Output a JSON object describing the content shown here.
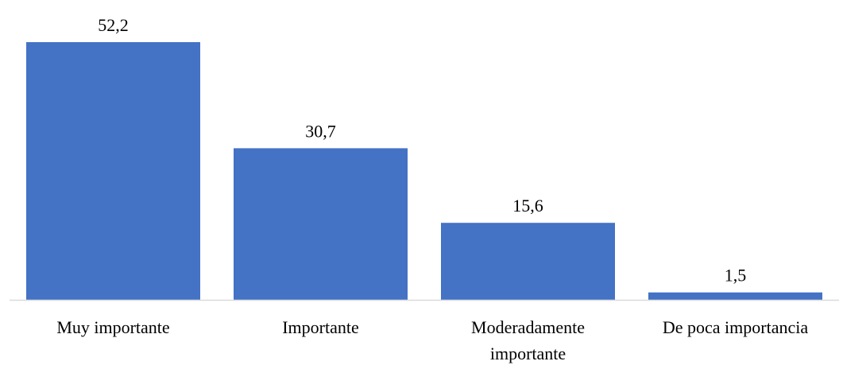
{
  "colors": {
    "bar": "#4472c4",
    "axis": "#d9d9d9",
    "text": "#000000",
    "background": "#ffffff"
  },
  "chart_data": {
    "type": "bar",
    "title": "",
    "xlabel": "",
    "ylabel": "",
    "categories": [
      [
        "Muy importante"
      ],
      [
        "Importante"
      ],
      [
        "Moderadamente",
        "importante"
      ],
      [
        "De poca importancia"
      ]
    ],
    "values": [
      52.2,
      30.7,
      15.6,
      1.5
    ],
    "data_labels": [
      "52,2",
      "30,7",
      "15,6",
      "1,5"
    ],
    "ylim": [
      0,
      52.2
    ],
    "grid": false,
    "legend": "none",
    "axis_visible": {
      "x": true,
      "y": false
    }
  }
}
